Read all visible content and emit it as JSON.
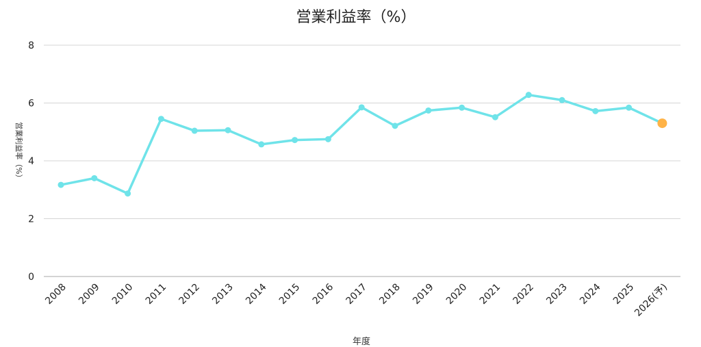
{
  "chart_data": {
    "type": "line",
    "title": "営業利益率（%）",
    "xlabel": "年度",
    "ylabel": "営業利益率（%）",
    "ylim": [
      0,
      8
    ],
    "y_ticks": [
      0,
      2,
      4,
      6,
      8
    ],
    "grid": true,
    "categories": [
      "2008",
      "2009",
      "2010",
      "2011",
      "2012",
      "2013",
      "2014",
      "2015",
      "2016",
      "2017",
      "2018",
      "2019",
      "2020",
      "2021",
      "2022",
      "2023",
      "2024",
      "2025",
      "2026(予)"
    ],
    "series": [
      {
        "values": [
          3.17,
          3.4,
          2.87,
          5.45,
          5.04,
          5.06,
          4.57,
          4.72,
          4.75,
          5.85,
          5.21,
          5.74,
          5.84,
          5.51,
          6.28,
          6.1,
          5.72,
          5.84,
          5.3
        ]
      }
    ],
    "colors": {
      "line": "#6fe3e9",
      "forecast_point": "#ffb347"
    },
    "forecast_index": 18
  }
}
